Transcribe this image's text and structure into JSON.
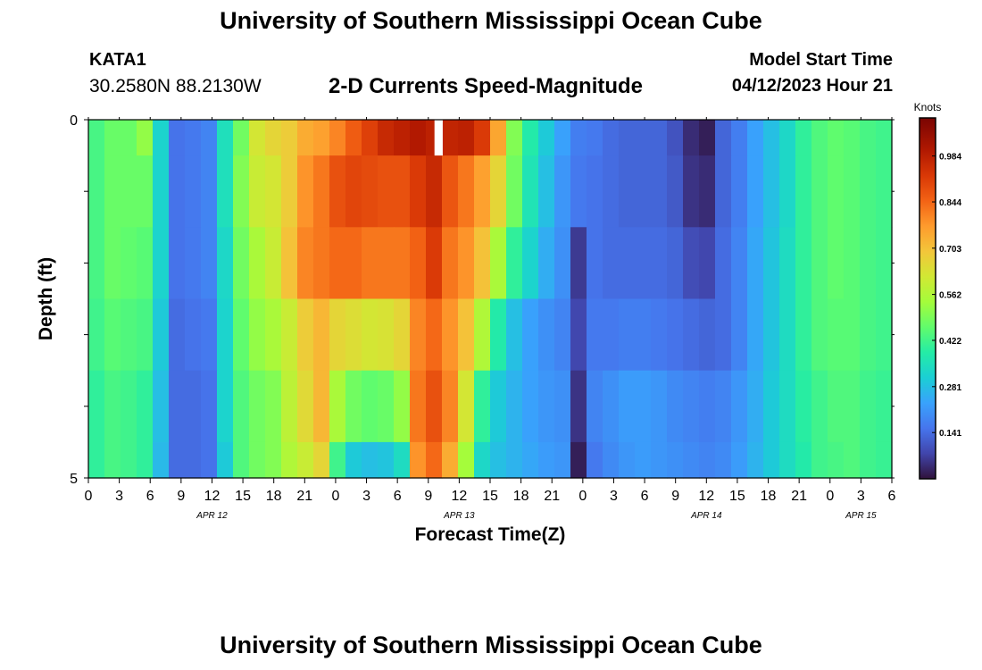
{
  "header": {
    "title": "University of Southern Mississippi Ocean Cube",
    "station_id": "KATA1",
    "coordinates": "30.2580N  88.2130W",
    "subtitle": "2-D Currents Speed-Magnitude",
    "model_label": "Model Start Time",
    "model_time": "04/12/2023 Hour 21",
    "bottom_title": "University of Southern Mississippi Ocean Cube"
  },
  "chart_data": {
    "type": "heatmap",
    "title": "2-D Currents Speed-Magnitude",
    "xlabel": "Forecast Time(Z)",
    "ylabel": "Depth (ft)",
    "x_tick_labels": [
      "0",
      "3",
      "6",
      "9",
      "12",
      "15",
      "18",
      "21",
      "0",
      "3",
      "6",
      "9",
      "12",
      "15",
      "18",
      "21",
      "0",
      "3",
      "6",
      "9",
      "12",
      "15",
      "18",
      "21",
      "0",
      "3",
      "6"
    ],
    "date_labels": [
      {
        "label": "APR 12",
        "tick_index": 4
      },
      {
        "label": "APR 13",
        "tick_index": 12
      },
      {
        "label": "APR 14",
        "tick_index": 20
      },
      {
        "label": "APR 15",
        "tick_index": 25
      }
    ],
    "y_tick_labels": [
      "0",
      "5"
    ],
    "y_range": [
      0,
      5
    ],
    "x_range_hours": [
      0,
      78
    ],
    "colorbar": {
      "unit": "Knots",
      "ticks": [
        "0.984",
        "0.844",
        "0.703",
        "0.562",
        "0.422",
        "0.281",
        "0.141"
      ],
      "range": [
        0,
        1.1
      ]
    },
    "depth_rows": [
      {
        "depth_range": [
          0,
          0.5
        ],
        "speeds": [
          0.43,
          0.47,
          0.47,
          0.52,
          0.32,
          0.15,
          0.16,
          0.18,
          0.35,
          0.48,
          0.62,
          0.66,
          0.68,
          0.74,
          0.76,
          0.8,
          0.86,
          0.91,
          0.96,
          0.98,
          1.0,
          0.98,
          0.97,
          0.98,
          0.92,
          0.75,
          0.5,
          0.38,
          0.3,
          0.23,
          0.17,
          0.16,
          0.14,
          0.13,
          0.13,
          0.13,
          0.1,
          0.04,
          0.02,
          0.13,
          0.17,
          0.23,
          0.28,
          0.33,
          0.4,
          0.44,
          0.46,
          0.45,
          0.43,
          0.42
        ]
      },
      {
        "depth_range": [
          0.5,
          1.5
        ],
        "speeds": [
          0.43,
          0.47,
          0.47,
          0.47,
          0.32,
          0.15,
          0.16,
          0.18,
          0.35,
          0.5,
          0.6,
          0.62,
          0.68,
          0.78,
          0.82,
          0.88,
          0.9,
          0.89,
          0.88,
          0.88,
          0.92,
          0.96,
          0.87,
          0.82,
          0.76,
          0.66,
          0.48,
          0.36,
          0.28,
          0.21,
          0.16,
          0.15,
          0.14,
          0.13,
          0.13,
          0.13,
          0.11,
          0.05,
          0.04,
          0.13,
          0.17,
          0.23,
          0.28,
          0.33,
          0.4,
          0.44,
          0.46,
          0.45,
          0.43,
          0.42
        ]
      },
      {
        "depth_range": [
          1.5,
          2.5
        ],
        "speeds": [
          0.43,
          0.47,
          0.46,
          0.45,
          0.32,
          0.15,
          0.16,
          0.18,
          0.33,
          0.48,
          0.55,
          0.6,
          0.7,
          0.8,
          0.82,
          0.84,
          0.84,
          0.82,
          0.82,
          0.82,
          0.85,
          0.92,
          0.82,
          0.78,
          0.7,
          0.55,
          0.4,
          0.32,
          0.25,
          0.2,
          0.06,
          0.15,
          0.14,
          0.14,
          0.14,
          0.14,
          0.13,
          0.09,
          0.08,
          0.14,
          0.18,
          0.24,
          0.29,
          0.34,
          0.4,
          0.44,
          0.46,
          0.45,
          0.43,
          0.42
        ]
      },
      {
        "depth_range": [
          2.5,
          3.5
        ],
        "speeds": [
          0.42,
          0.45,
          0.44,
          0.43,
          0.3,
          0.14,
          0.15,
          0.16,
          0.32,
          0.46,
          0.52,
          0.55,
          0.6,
          0.68,
          0.72,
          0.66,
          0.64,
          0.62,
          0.63,
          0.66,
          0.8,
          0.84,
          0.78,
          0.7,
          0.56,
          0.38,
          0.28,
          0.23,
          0.2,
          0.18,
          0.08,
          0.16,
          0.16,
          0.17,
          0.17,
          0.16,
          0.15,
          0.14,
          0.13,
          0.14,
          0.18,
          0.24,
          0.29,
          0.34,
          0.4,
          0.44,
          0.45,
          0.45,
          0.43,
          0.42
        ]
      },
      {
        "depth_range": [
          3.5,
          4.5
        ],
        "speeds": [
          0.4,
          0.43,
          0.42,
          0.4,
          0.28,
          0.14,
          0.14,
          0.15,
          0.32,
          0.44,
          0.48,
          0.5,
          0.58,
          0.65,
          0.72,
          0.55,
          0.48,
          0.46,
          0.47,
          0.52,
          0.82,
          0.88,
          0.8,
          0.62,
          0.4,
          0.3,
          0.26,
          0.23,
          0.21,
          0.2,
          0.05,
          0.18,
          0.2,
          0.22,
          0.22,
          0.21,
          0.19,
          0.18,
          0.17,
          0.18,
          0.21,
          0.25,
          0.3,
          0.34,
          0.39,
          0.42,
          0.44,
          0.44,
          0.42,
          0.41
        ]
      },
      {
        "depth_range": [
          4.5,
          5
        ],
        "speeds": [
          0.4,
          0.43,
          0.42,
          0.4,
          0.27,
          0.14,
          0.14,
          0.15,
          0.3,
          0.44,
          0.48,
          0.5,
          0.56,
          0.6,
          0.66,
          0.42,
          0.3,
          0.28,
          0.29,
          0.34,
          0.78,
          0.84,
          0.74,
          0.54,
          0.33,
          0.28,
          0.26,
          0.24,
          0.22,
          0.21,
          0.02,
          0.16,
          0.19,
          0.21,
          0.22,
          0.21,
          0.2,
          0.19,
          0.18,
          0.19,
          0.22,
          0.26,
          0.3,
          0.34,
          0.38,
          0.42,
          0.43,
          0.44,
          0.42,
          0.41
        ]
      }
    ],
    "missing_cell": {
      "depth_range": [
        0,
        0.5
      ],
      "hour_range": [
        33.6,
        34.4
      ]
    }
  }
}
